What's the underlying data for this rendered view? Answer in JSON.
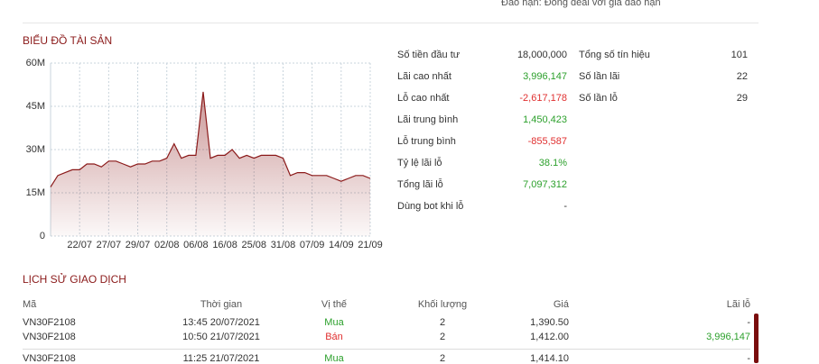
{
  "header": {
    "note": "Đáo hạn: Đóng deal với giá đáo hạn"
  },
  "chart_data": {
    "type": "area",
    "title": "BIỂU ĐỒ TÀI SẢN",
    "color": "#8b1a1a",
    "grid": true,
    "categories": [
      null,
      null,
      null,
      null,
      "22/07",
      null,
      null,
      null,
      "27/07",
      null,
      null,
      null,
      "29/07",
      null,
      null,
      null,
      "02/08",
      null,
      null,
      null,
      "06/08",
      null,
      null,
      null,
      "16/08",
      null,
      null,
      null,
      "25/08",
      null,
      null,
      null,
      "31/08",
      null,
      null,
      null,
      "07/09",
      null,
      null,
      null,
      "14/09",
      null,
      null,
      null,
      "21/09"
    ],
    "values": [
      17,
      21,
      22,
      23,
      23,
      25,
      25,
      24,
      26,
      26,
      25,
      24,
      25,
      25,
      26,
      26,
      27,
      32,
      27,
      28,
      28,
      50,
      27,
      28,
      28,
      30,
      27,
      28,
      27,
      28,
      28,
      28,
      27,
      21,
      22,
      22,
      21,
      21,
      21,
      20,
      19,
      20,
      21,
      21,
      20
    ],
    "ylim": [
      0,
      60
    ],
    "yticks": [
      0,
      {
        "value": 15,
        "label": "15M"
      },
      {
        "value": 30,
        "label": "30M"
      },
      {
        "value": 45,
        "label": "45M"
      },
      {
        "value": 60,
        "label": "60M"
      }
    ]
  },
  "stats": {
    "left": [
      [
        "Số tiền đầu tư",
        "18,000,000"
      ],
      [
        "Lãi cao nhất",
        "3,996,147"
      ],
      [
        "Lỗ cao nhất",
        "-2,617,178"
      ],
      [
        "Lãi trung bình",
        "1,450,423"
      ],
      [
        "Lỗ trung bình",
        "-855,587"
      ],
      [
        "Tỷ lệ lãi lỗ",
        "38.1%"
      ],
      [
        "Tổng lãi lỗ",
        "7,097,312"
      ],
      [
        "Dùng bot khi lỗ",
        "-"
      ]
    ],
    "right": [
      [
        "Tổng số tín hiệu",
        "101"
      ],
      [
        "Số lần lãi",
        "22"
      ],
      [
        "Số lần lỗ",
        "29"
      ]
    ]
  },
  "table": {
    "title": "LỊCH SỬ GIAO DỊCH",
    "columns": [
      "Mã",
      "Thời gian",
      "Vị thế",
      "Khối lượng",
      "Giá",
      "Lãi lỗ"
    ],
    "rows": [
      [
        "VN30F2108",
        "13:45 20/07/2021",
        "Mua",
        "2",
        "1,390.50",
        "-"
      ],
      [
        "VN30F2108",
        "10:50 21/07/2021",
        "Bán",
        "2",
        "1,412.00",
        "3,996,147"
      ],
      [
        "VN30F2108",
        "11:25 21/07/2021",
        "Mua",
        "2",
        "1,414.10",
        "-"
      ]
    ]
  }
}
